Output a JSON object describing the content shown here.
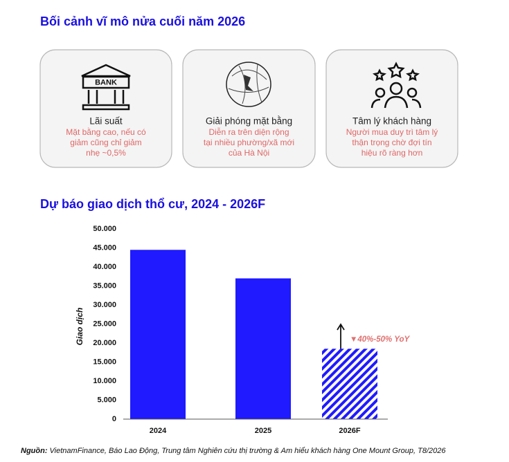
{
  "header": {
    "title": "Bối cảnh vĩ mô nửa cuối năm 2026"
  },
  "cards": [
    {
      "icon_text": "BANK",
      "title": "Lãi suất",
      "lines": [
        "Mặt bằng cao, nếu có",
        "giảm cũng chỉ giảm",
        "nhẹ ~0,5%"
      ]
    },
    {
      "title": "Giải phóng mặt bằng",
      "lines": [
        "Diễn ra trên diện rộng",
        "tại nhiều phường/xã mới",
        "của Hà Nội"
      ]
    },
    {
      "title": "Tâm lý khách hàng",
      "lines": [
        "Người mua duy trì tâm lý",
        "thận trọng chờ đợi tín",
        "hiệu rõ ràng hơn"
      ]
    }
  ],
  "chart_data": {
    "type": "bar",
    "title": "Dự báo giao dịch thổ cư, 2024 - 2026F",
    "y_label": "Giao dịch",
    "categories": [
      "2024",
      "2025",
      "2026F"
    ],
    "values": [
      44500,
      37000,
      18500
    ],
    "hatched": [
      false,
      false,
      true
    ],
    "color": "#1f1aff",
    "ylim": [
      0,
      50000
    ],
    "yticks": [
      0,
      {
        "value": 5000,
        "label": "5.000"
      },
      {
        "value": 10000,
        "label": "10.000"
      },
      {
        "value": 15000,
        "label": "15.000"
      },
      {
        "value": 20000,
        "label": "20.000"
      },
      {
        "value": 25000,
        "label": "25.000"
      },
      {
        "value": 30000,
        "label": "30.000"
      },
      {
        "value": 35000,
        "label": "35.000"
      },
      {
        "value": 40000,
        "label": "40.000"
      },
      {
        "value": 45000,
        "label": "45.000"
      },
      {
        "value": 50000,
        "label": "50.000"
      }
    ],
    "grid": false,
    "annotation": "▼40%-50% YoY"
  },
  "footer": {
    "label": "Nguồn:",
    "text": "VietnamFinance, Báo Lao Động, Trung tâm Nghiên cứu thị trường & Am hiểu khách hàng One Mount Group, T8/2026"
  }
}
